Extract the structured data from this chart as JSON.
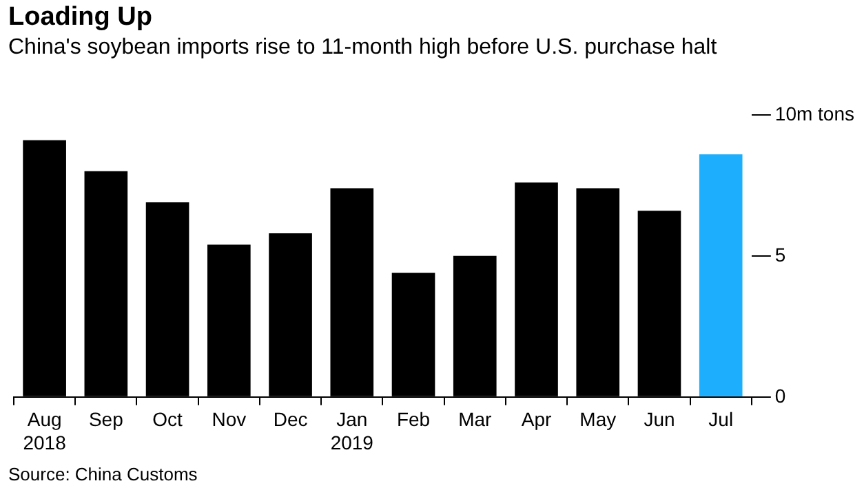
{
  "chart_data": {
    "type": "bar",
    "title": "Loading Up",
    "subtitle": "China's soybean imports rise to 11-month high before U.S. purchase halt",
    "categories": [
      "Aug 2018",
      "Sep",
      "Oct",
      "Nov",
      "Dec",
      "Jan 2019",
      "Feb",
      "Mar",
      "Apr",
      "May",
      "Jun",
      "Jul"
    ],
    "values": [
      9.1,
      8.0,
      6.9,
      5.4,
      5.8,
      7.4,
      4.4,
      5.0,
      7.6,
      7.4,
      6.6,
      8.6
    ],
    "colors": [
      "#000000",
      "#000000",
      "#000000",
      "#000000",
      "#000000",
      "#000000",
      "#000000",
      "#000000",
      "#000000",
      "#000000",
      "#000000",
      "#1eaefe"
    ],
    "ylim": [
      0,
      10
    ],
    "yticks": [
      0,
      5,
      {
        "value": 10,
        "label": "10m tons"
      }
    ],
    "grid": false,
    "annotations": [
      "Source: China Customs"
    ]
  }
}
